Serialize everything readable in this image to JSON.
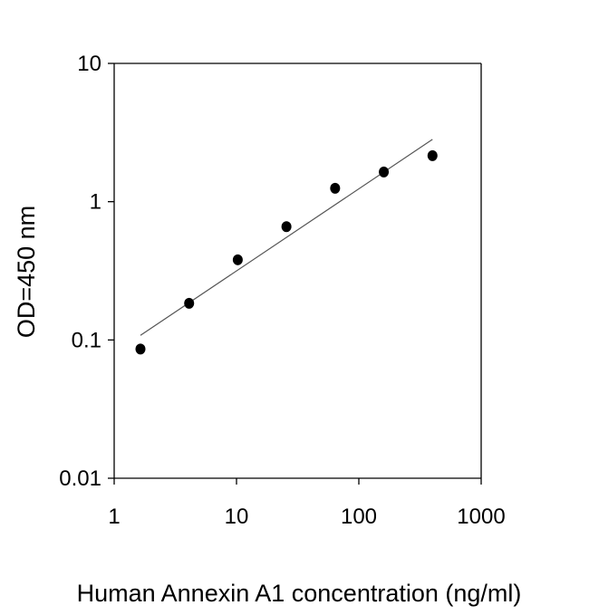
{
  "chart_data": {
    "type": "scatter",
    "title": "",
    "xlabel": "Human Annexin A1 concentration (ng/ml)",
    "ylabel": "OD=450 nm",
    "xscale": "log",
    "yscale": "log",
    "xlim": [
      1,
      1000
    ],
    "ylim": [
      0.01,
      10
    ],
    "xticks": [
      "1",
      "10",
      "100",
      "1000"
    ],
    "yticks": [
      "0.01",
      "0.1",
      "1",
      "10"
    ],
    "xtick_values": [
      1,
      10,
      100,
      1000
    ],
    "ytick_values": [
      0.01,
      0.1,
      1,
      10
    ],
    "grid": false,
    "points": [
      {
        "x": 1.64,
        "y": 0.086
      },
      {
        "x": 4.1,
        "y": 0.184
      },
      {
        "x": 10.24,
        "y": 0.38
      },
      {
        "x": 25.6,
        "y": 0.66
      },
      {
        "x": 64,
        "y": 1.25
      },
      {
        "x": 160,
        "y": 1.64
      },
      {
        "x": 400,
        "y": 2.15
      }
    ],
    "trendline": {
      "x": [
        1.64,
        400
      ],
      "y": [
        0.108,
        2.82
      ]
    },
    "colors": {
      "points": "#000000",
      "trendline": "#555555",
      "axes": "#000000"
    }
  }
}
